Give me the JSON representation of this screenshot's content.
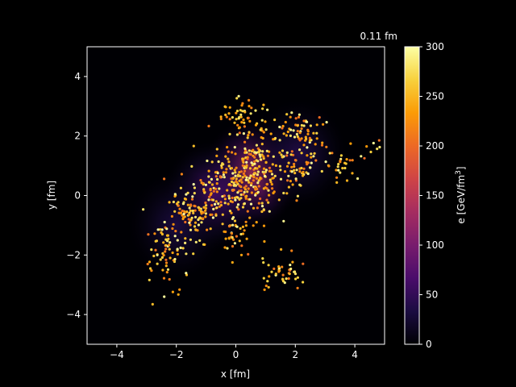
{
  "chart_data": {
    "type": "scatter",
    "title": "0.11 fm",
    "xlabel": "x [fm]",
    "ylabel": "y [fm]",
    "xlim": [
      -5,
      5
    ],
    "ylim": [
      -5,
      5
    ],
    "xticks": [
      -4,
      -2,
      0,
      2,
      4
    ],
    "yticks": [
      -4,
      -2,
      0,
      2,
      4
    ],
    "grid": false,
    "background_heatmap": {
      "quantity": "energy density",
      "blobs": [
        {
          "x": 0.5,
          "y": 0.7,
          "peak": 140
        },
        {
          "x": -0.8,
          "y": 0.0,
          "peak": 70
        },
        {
          "x": 2.1,
          "y": 1.4,
          "peak": 40
        },
        {
          "x": -2.0,
          "y": -1.0,
          "peak": 35
        }
      ]
    },
    "colorbar": {
      "label_main": "e [GeV/fm",
      "label_sup": "3",
      "label_end": "]",
      "range": [
        0,
        300
      ],
      "ticks": [
        0,
        50,
        100,
        150,
        200,
        250,
        300
      ],
      "colormap": "inferno",
      "stops": [
        "#000004",
        "#1b0c41",
        "#4a0c6b",
        "#781c6d",
        "#a52c60",
        "#cf4446",
        "#ed6925",
        "#fb9b06",
        "#f7d13d",
        "#fcffa4"
      ]
    },
    "particle_clusters": [
      {
        "x": 0.5,
        "y": 0.8,
        "sx": 0.55,
        "sy": 0.75,
        "n": 260
      },
      {
        "x": 0.2,
        "y": 2.6,
        "sx": 0.45,
        "sy": 0.35,
        "n": 50
      },
      {
        "x": -0.7,
        "y": 0.0,
        "sx": 0.6,
        "sy": 0.55,
        "n": 110
      },
      {
        "x": -1.6,
        "y": -0.6,
        "sx": 0.45,
        "sy": 0.5,
        "n": 90
      },
      {
        "x": -2.4,
        "y": -1.8,
        "sx": 0.35,
        "sy": 0.55,
        "n": 70
      },
      {
        "x": 0.0,
        "y": -1.4,
        "sx": 0.35,
        "sy": 0.3,
        "n": 30
      },
      {
        "x": 2.2,
        "y": 2.0,
        "sx": 0.4,
        "sy": 0.45,
        "n": 70
      },
      {
        "x": 2.1,
        "y": 0.8,
        "sx": 0.35,
        "sy": 0.3,
        "n": 40
      },
      {
        "x": 3.6,
        "y": 1.1,
        "sx": 0.35,
        "sy": 0.3,
        "n": 30
      },
      {
        "x": 1.5,
        "y": -2.6,
        "sx": 0.35,
        "sy": 0.3,
        "n": 45
      },
      {
        "x": 4.7,
        "y": 1.7,
        "sx": 0.15,
        "sy": 0.25,
        "n": 6
      }
    ]
  }
}
